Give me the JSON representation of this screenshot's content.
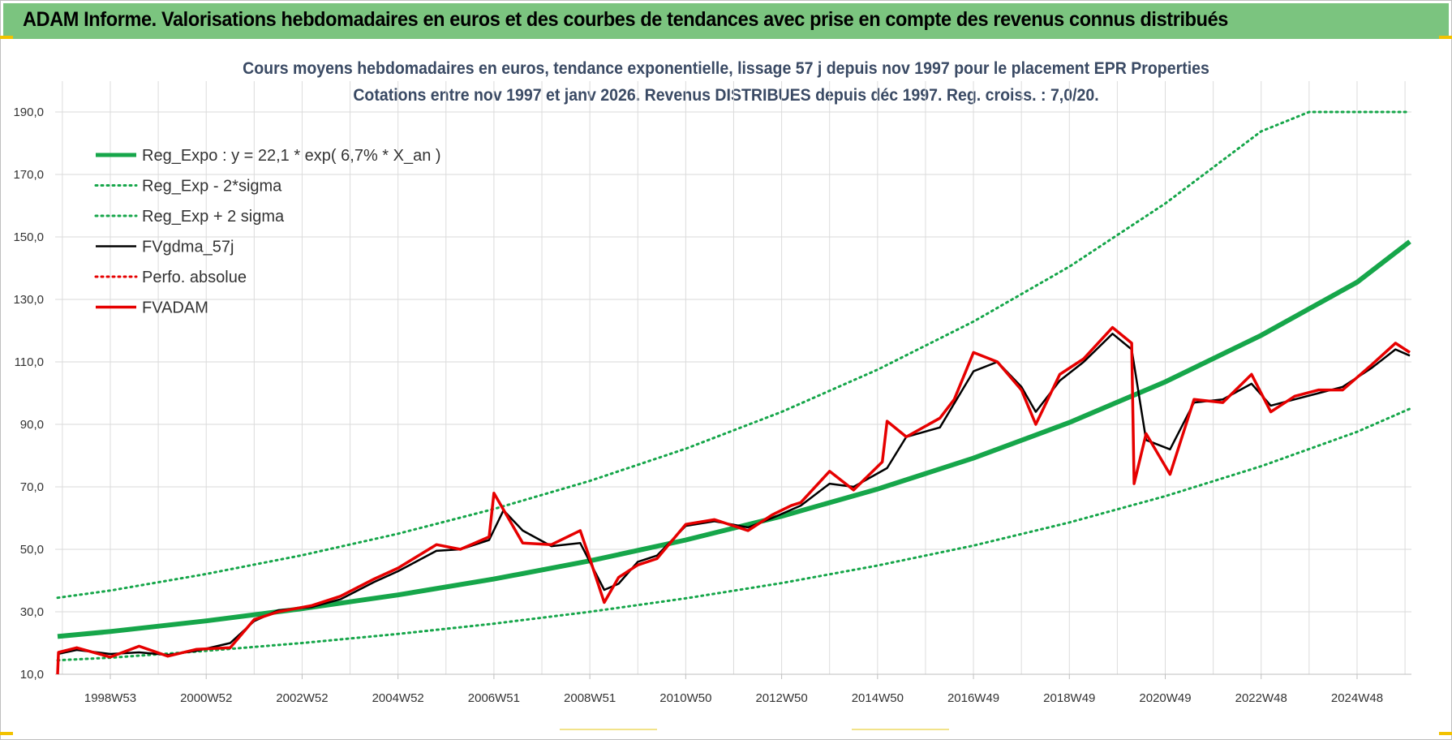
{
  "header": {
    "title": "ADAM Informe. Valorisations hebdomadaires en euros et des courbes de tendances avec prise en compte des revenus connus distribués"
  },
  "chart_data": {
    "type": "line",
    "title": "Cours moyens hebdomadaires en euros, tendance exponentielle, lissage 57 j depuis nov 1997  pour le placement EPR Properties",
    "subtitle": "Cotations entre nov 1997 et janv 2026. Revenus DISTRIBUES depuis déc 1997. Reg. croiss. : 7,0/20.",
    "xlabel": "",
    "ylabel": "",
    "ylim": [
      10,
      190
    ],
    "yticks": [
      10,
      30,
      50,
      70,
      90,
      110,
      130,
      150,
      170,
      190
    ],
    "ytick_labels": [
      "10,0",
      "30,0",
      "50,0",
      "70,0",
      "90,0",
      "110,0",
      "130,0",
      "150,0",
      "170,0",
      "190,0"
    ],
    "xlim": [
      1997.85,
      2026.1
    ],
    "xticks": [
      {
        "label": "1998W53",
        "x": 1999.0
      },
      {
        "label": "2000W52",
        "x": 2001.0
      },
      {
        "label": "2002W52",
        "x": 2003.0
      },
      {
        "label": "2004W52",
        "x": 2005.0
      },
      {
        "label": "2006W51",
        "x": 2007.0
      },
      {
        "label": "2008W51",
        "x": 2009.0
      },
      {
        "label": "2010W50",
        "x": 2011.0
      },
      {
        "label": "2012W50",
        "x": 2013.0
      },
      {
        "label": "2014W50",
        "x": 2015.0
      },
      {
        "label": "2016W49",
        "x": 2017.0
      },
      {
        "label": "2018W49",
        "x": 2019.0
      },
      {
        "label": "2020W49",
        "x": 2021.0
      },
      {
        "label": "2022W48",
        "x": 2023.0
      },
      {
        "label": "2024W48",
        "x": 2025.0
      }
    ],
    "grid": true,
    "legend_position": "top-left",
    "series": [
      {
        "name": "Reg_Expo : y = 22,1 * exp( 6,7% *  X_an )",
        "color": "#16a64a",
        "style": "solid-thick",
        "x": [
          1997.9,
          1999.0,
          2001.0,
          2003.0,
          2005.0,
          2007.0,
          2009.0,
          2011.0,
          2013.0,
          2015.0,
          2017.0,
          2019.0,
          2021.0,
          2023.0,
          2025.0,
          2026.1
        ],
        "y": [
          22.1,
          23.7,
          27.1,
          31.0,
          35.4,
          40.5,
          46.3,
          53.0,
          60.6,
          69.3,
          79.2,
          90.6,
          103.6,
          118.5,
          135.5,
          148.5
        ]
      },
      {
        "name": "Reg_Exp - 2*sigma",
        "color": "#16a64a",
        "style": "dotted",
        "x": [
          1997.9,
          1999.0,
          2001.0,
          2003.0,
          2005.0,
          2007.0,
          2009.0,
          2011.0,
          2013.0,
          2015.0,
          2017.0,
          2019.0,
          2021.0,
          2023.0,
          2025.0,
          2026.1
        ],
        "y": [
          14.5,
          15.3,
          17.5,
          20.0,
          22.9,
          26.2,
          30.0,
          34.3,
          39.2,
          44.8,
          51.2,
          58.6,
          67.0,
          76.6,
          87.6,
          95.0
        ]
      },
      {
        "name": "Reg_Exp + 2 sigma",
        "color": "#16a64a",
        "style": "dotted",
        "x": [
          1997.9,
          1999.0,
          2001.0,
          2003.0,
          2005.0,
          2007.0,
          2009.0,
          2011.0,
          2013.0,
          2015.0,
          2017.0,
          2019.0,
          2021.0,
          2023.0,
          2024.0,
          2026.1
        ],
        "y": [
          34.5,
          36.8,
          42.1,
          48.1,
          55.0,
          62.9,
          71.9,
          82.2,
          94.0,
          107.5,
          122.9,
          140.5,
          160.7,
          183.8,
          190.0,
          190.0
        ]
      },
      {
        "name": "FVgdma_57j",
        "color": "#000000",
        "style": "solid",
        "x": [
          1997.9,
          1998.3,
          1999.0,
          1999.6,
          2000.2,
          2000.8,
          2001.5,
          2002.0,
          2002.5,
          2003.2,
          2003.8,
          2004.5,
          2005.0,
          2005.8,
          2006.3,
          2006.9,
          2007.2,
          2007.6,
          2008.2,
          2008.8,
          2009.3,
          2009.6,
          2010.0,
          2010.4,
          2011.0,
          2011.6,
          2012.3,
          2012.8,
          2013.4,
          2014.0,
          2014.5,
          2015.2,
          2015.6,
          2016.3,
          2017.0,
          2017.5,
          2018.0,
          2018.3,
          2018.8,
          2019.3,
          2019.9,
          2020.3,
          2020.6,
          2021.1,
          2021.6,
          2022.2,
          2022.8,
          2023.2,
          2023.7,
          2024.2,
          2024.7,
          2025.3,
          2025.8,
          2026.1
        ],
        "y": [
          16.5,
          17.8,
          16.5,
          17.0,
          16.2,
          17.5,
          20.0,
          27.0,
          30.5,
          31.5,
          34.0,
          39.5,
          43.0,
          49.5,
          50.0,
          53.0,
          62.5,
          56.0,
          51.0,
          52.0,
          37.0,
          39.0,
          46.0,
          48.0,
          57.5,
          59.0,
          57.0,
          60.0,
          64.0,
          71.0,
          70.0,
          76.0,
          86.0,
          89.0,
          107.0,
          110.0,
          102.0,
          94.0,
          104.0,
          110.0,
          119.0,
          114.0,
          85.0,
          82.0,
          97.0,
          98.0,
          103.0,
          96.0,
          98.0,
          100.0,
          102.0,
          108.0,
          114.0,
          112.0
        ]
      },
      {
        "name": "Perfo. absolue",
        "color": "#e60000",
        "style": "dotted",
        "x": [],
        "y": []
      },
      {
        "name": "FVADAM",
        "color": "#e60000",
        "style": "solid",
        "x": [
          1997.9,
          1997.92,
          1998.3,
          1999.0,
          1999.6,
          2000.2,
          2000.8,
          2001.5,
          2002.0,
          2002.5,
          2003.2,
          2003.8,
          2004.5,
          2005.0,
          2005.8,
          2006.3,
          2006.9,
          2007.0,
          2007.6,
          2008.2,
          2008.8,
          2009.0,
          2009.3,
          2009.6,
          2010.0,
          2010.4,
          2011.0,
          2011.6,
          2012.3,
          2012.8,
          2013.2,
          2013.4,
          2014.0,
          2014.5,
          2015.1,
          2015.2,
          2015.6,
          2016.3,
          2016.6,
          2017.0,
          2017.5,
          2018.0,
          2018.3,
          2018.8,
          2019.3,
          2019.9,
          2020.3,
          2020.35,
          2020.6,
          2021.1,
          2021.6,
          2022.2,
          2022.8,
          2023.2,
          2023.7,
          2024.2,
          2024.7,
          2025.3,
          2025.8,
          2026.1
        ],
        "y": [
          10.0,
          17.0,
          18.5,
          15.5,
          19.0,
          15.8,
          18.0,
          18.5,
          27.5,
          30.0,
          32.0,
          35.0,
          40.5,
          44.0,
          51.5,
          50.0,
          54.0,
          68.0,
          52.0,
          51.5,
          56.0,
          47.0,
          33.0,
          41.0,
          45.0,
          47.0,
          58.0,
          59.5,
          56.0,
          61.0,
          64.0,
          65.0,
          75.0,
          69.0,
          78.0,
          91.0,
          86.0,
          92.0,
          98.0,
          113.0,
          110.0,
          101.0,
          90.0,
          106.0,
          111.0,
          121.0,
          116.0,
          71.0,
          87.0,
          74.0,
          98.0,
          97.0,
          106.0,
          94.0,
          99.0,
          101.0,
          101.0,
          109.0,
          116.0,
          113.0
        ]
      }
    ]
  }
}
